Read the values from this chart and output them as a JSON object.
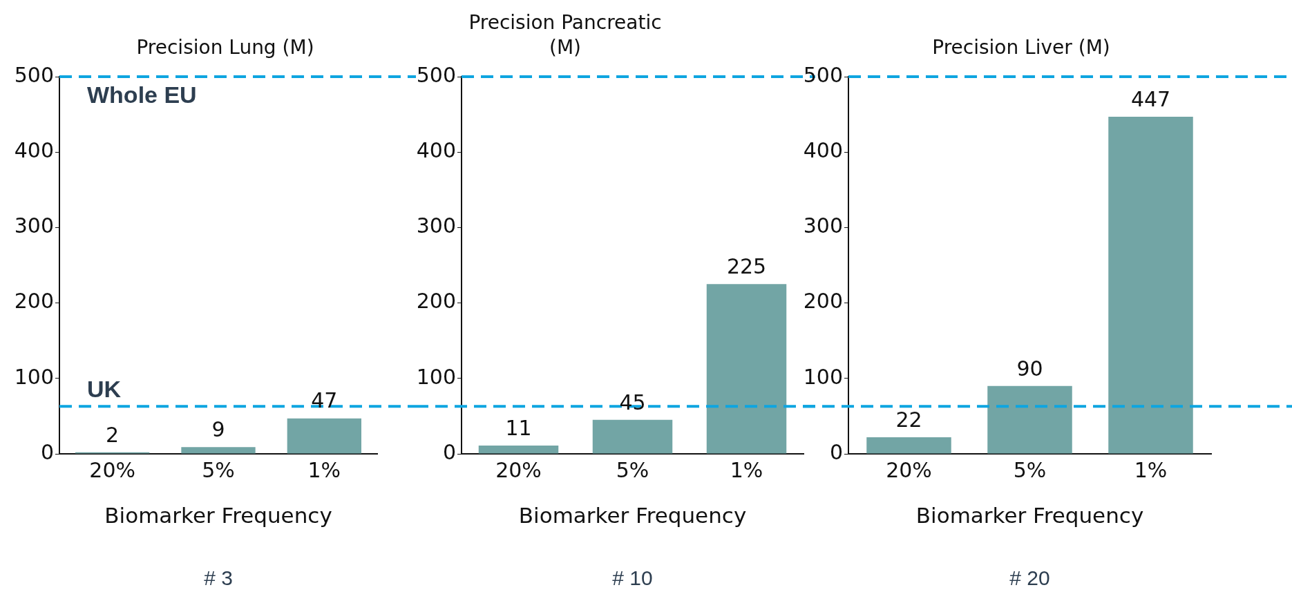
{
  "chart_data": [
    {
      "type": "bar",
      "title": "Precision Lung (M)",
      "xlabel": "Biomarker Frequency",
      "categories": [
        "20%",
        "5%",
        "1%"
      ],
      "values": [
        2,
        9,
        47
      ],
      "color": "#72a5a5",
      "ylim": [
        0,
        500
      ],
      "yticks": [
        0,
        100,
        200,
        300,
        400,
        500
      ],
      "data_labels": true,
      "grid": false,
      "legend": false,
      "ref_lines": [
        {
          "axis": "y",
          "value": 500,
          "label": "Whole EU",
          "color": "#0ea5e0",
          "line_style": "dashed"
        },
        {
          "axis": "y",
          "value": 63,
          "label": "UK",
          "color": "#0ea5e0",
          "line_style": "dashed"
        }
      ],
      "annotations": [
        "# 3"
      ]
    },
    {
      "type": "bar",
      "title": "Precision Pancreatic (M)",
      "xlabel": "Biomarker Frequency",
      "categories": [
        "20%",
        "5%",
        "1%"
      ],
      "values": [
        11,
        45,
        225
      ],
      "color": "#72a5a5",
      "ylim": [
        0,
        500
      ],
      "yticks": [
        0,
        100,
        200,
        300,
        400,
        500
      ],
      "data_labels": true,
      "grid": false,
      "legend": false,
      "ref_lines": [
        {
          "axis": "y",
          "value": 500,
          "color": "#0ea5e0",
          "line_style": "dashed"
        },
        {
          "axis": "y",
          "value": 63,
          "color": "#0ea5e0",
          "line_style": "dashed"
        }
      ],
      "annotations": [
        "# 10"
      ]
    },
    {
      "type": "bar",
      "title": "Precision Liver (M)",
      "xlabel": "Biomarker Frequency",
      "categories": [
        "20%",
        "5%",
        "1%"
      ],
      "values": [
        22,
        90,
        447
      ],
      "color": "#72a5a5",
      "ylim": [
        0,
        500
      ],
      "yticks": [
        0,
        100,
        200,
        300,
        400,
        500
      ],
      "data_labels": true,
      "grid": false,
      "legend": false,
      "ref_lines": [
        {
          "axis": "y",
          "value": 500,
          "color": "#0ea5e0",
          "line_style": "dashed"
        },
        {
          "axis": "y",
          "value": 63,
          "color": "#0ea5e0",
          "line_style": "dashed"
        }
      ],
      "annotations": [
        "# 20"
      ]
    }
  ]
}
